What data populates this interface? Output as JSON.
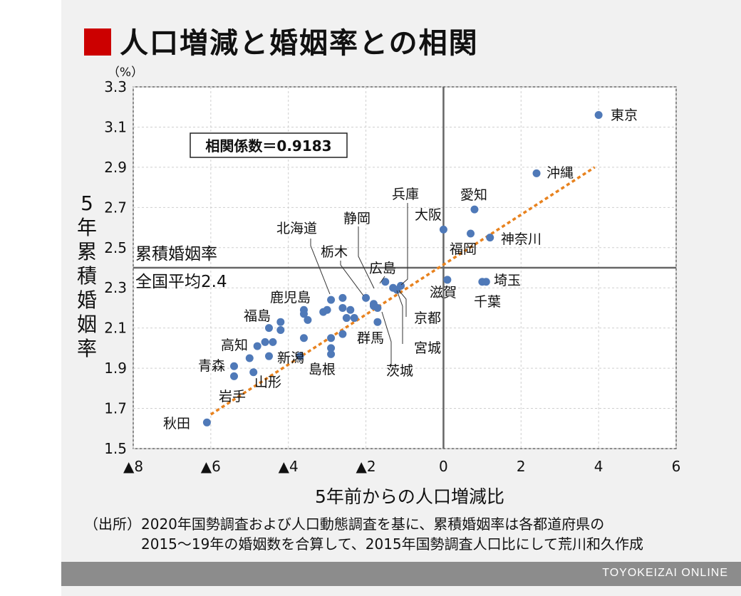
{
  "title": "人口増減と婚姻率との相関",
  "source_line1": "（出所）2020年国勢調査および人口動態調査を基に、累積婚姻率は各都道府県の",
  "source_line2": "2015～19年の婚姻数を合算して、2015年国勢調査人口比にして荒川和久作成",
  "footer": "TOYOKEIZAI ONLINE",
  "colors": {
    "accent": "#cc0000",
    "point": "#4f79b8",
    "trend": "#e8821e",
    "panel": "#f1f1f1",
    "footer": "#8c8c8c"
  },
  "chart_data": {
    "type": "scatter",
    "xlabel": "5年前からの人口増減比",
    "ylabel": "5年累積婚姻率",
    "yunit": "（%）",
    "xlim": [
      -8,
      6
    ],
    "ylim": [
      1.5,
      3.3
    ],
    "x_ticks": [
      -8,
      -6,
      -4,
      -2,
      0,
      2,
      4,
      6
    ],
    "x_tick_labels": [
      "▲8",
      "▲6",
      "▲4",
      "▲2",
      "0",
      "2",
      "4",
      "6"
    ],
    "y_ticks": [
      1.5,
      1.7,
      1.9,
      2.1,
      2.3,
      2.5,
      2.7,
      2.9,
      3.1,
      3.3
    ],
    "y_tick_labels": [
      "1.5",
      "1.7",
      "1.9",
      "2.1",
      "2.3",
      "2.5",
      "2.7",
      "2.9",
      "3.1",
      "3.3"
    ],
    "grid": true,
    "correlation_label": "相関係数＝0.9183",
    "reference_line": {
      "y": 2.4,
      "label1": "累積婚姻率",
      "label2": "全国平均2.4"
    },
    "reference_x": 0,
    "trendline": {
      "x": [
        -6,
        3.9
      ],
      "y": [
        1.67,
        2.9
      ]
    },
    "labeled_points": [
      {
        "name": "東京",
        "x": 4.0,
        "y": 3.16
      },
      {
        "name": "沖縄",
        "x": 2.4,
        "y": 2.87
      },
      {
        "name": "愛知",
        "x": 0.8,
        "y": 2.69
      },
      {
        "name": "大阪",
        "x": 0.0,
        "y": 2.59
      },
      {
        "name": "神奈川",
        "x": 1.2,
        "y": 2.55
      },
      {
        "name": "福岡",
        "x": 0.7,
        "y": 2.57
      },
      {
        "name": "埼玉",
        "x": 1.0,
        "y": 2.33
      },
      {
        "name": "千葉",
        "x": 1.1,
        "y": 2.33
      },
      {
        "name": "滋賀",
        "x": 0.1,
        "y": 2.34
      },
      {
        "name": "兵庫",
        "x": -1.1,
        "y": 2.31
      },
      {
        "name": "京都",
        "x": -1.2,
        "y": 2.29
      },
      {
        "name": "広島",
        "x": -1.5,
        "y": 2.33
      },
      {
        "name": "宮城",
        "x": -1.3,
        "y": 2.3
      },
      {
        "name": "茨城",
        "x": -1.7,
        "y": 2.2
      },
      {
        "name": "群馬",
        "x": -1.7,
        "y": 2.13
      },
      {
        "name": "静岡",
        "x": -2.0,
        "y": 2.25
      },
      {
        "name": "栃木",
        "x": -1.8,
        "y": 2.21
      },
      {
        "name": "北海道",
        "x": -2.9,
        "y": 2.24
      },
      {
        "name": "鹿児島",
        "x": -3.6,
        "y": 2.17
      },
      {
        "name": "福島",
        "x": -4.2,
        "y": 2.13
      },
      {
        "name": "新潟",
        "x": -4.4,
        "y": 2.03
      },
      {
        "name": "島根",
        "x": -2.9,
        "y": 1.97
      },
      {
        "name": "高知",
        "x": -4.8,
        "y": 2.01
      },
      {
        "name": "青森",
        "x": -5.4,
        "y": 1.91
      },
      {
        "name": "山形",
        "x": -4.9,
        "y": 1.88
      },
      {
        "name": "岩手",
        "x": -5.4,
        "y": 1.86
      },
      {
        "name": "秋田",
        "x": -6.1,
        "y": 1.63
      }
    ],
    "unlabeled_points": [
      {
        "x": -2.6,
        "y": 2.25
      },
      {
        "x": -2.6,
        "y": 2.2
      },
      {
        "x": -2.4,
        "y": 2.19
      },
      {
        "x": -2.5,
        "y": 2.15
      },
      {
        "x": -2.3,
        "y": 2.15
      },
      {
        "x": -3.1,
        "y": 2.18
      },
      {
        "x": -3.0,
        "y": 2.19
      },
      {
        "x": -3.6,
        "y": 2.19
      },
      {
        "x": -3.5,
        "y": 2.14
      },
      {
        "x": -1.8,
        "y": 2.22
      },
      {
        "x": -2.6,
        "y": 2.07
      },
      {
        "x": -2.9,
        "y": 2.05
      },
      {
        "x": -2.9,
        "y": 2.0
      },
      {
        "x": -3.6,
        "y": 2.05
      },
      {
        "x": -4.2,
        "y": 2.09
      },
      {
        "x": -4.5,
        "y": 2.1
      },
      {
        "x": -4.6,
        "y": 2.03
      },
      {
        "x": -5.0,
        "y": 1.95
      },
      {
        "x": -4.5,
        "y": 1.96
      },
      {
        "x": -3.7,
        "y": 1.96
      }
    ]
  }
}
